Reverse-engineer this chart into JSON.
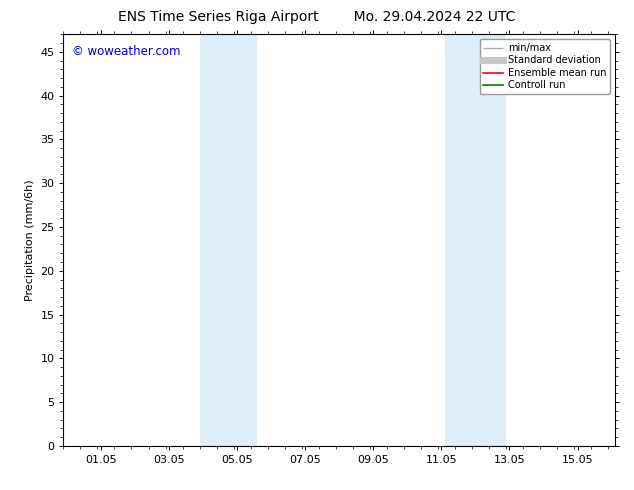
{
  "title_left": "ENS Time Series Riga Airport",
  "title_right": "Mo. 29.04.2024 22 UTC",
  "ylabel": "Precipitation (mm/6h)",
  "xlabel": "",
  "ylim": [
    0,
    47
  ],
  "yticks": [
    0,
    5,
    10,
    15,
    20,
    25,
    30,
    35,
    40,
    45
  ],
  "xtick_labels": [
    "01.05",
    "03.05",
    "05.05",
    "07.05",
    "09.05",
    "11.05",
    "13.05",
    "15.05"
  ],
  "xtick_positions": [
    1.0,
    3.0,
    5.0,
    7.0,
    9.0,
    11.0,
    13.0,
    15.0
  ],
  "xlim": [
    -0.1,
    16.1
  ],
  "shaded_bands": [
    {
      "x_start": 3.9,
      "x_end": 5.6,
      "color": "#ddeef8"
    },
    {
      "x_start": 11.1,
      "x_end": 12.9,
      "color": "#ddeef8"
    }
  ],
  "watermark_text": "© woweather.com",
  "watermark_color": "#0000cc",
  "legend_entries": [
    {
      "label": "min/max",
      "color": "#aaaaaa",
      "linewidth": 1.0
    },
    {
      "label": "Standard deviation",
      "color": "#c8c8c8",
      "linewidth": 5
    },
    {
      "label": "Ensemble mean run",
      "color": "#ff0000",
      "linewidth": 1.2
    },
    {
      "label": "Controll run",
      "color": "#008000",
      "linewidth": 1.2
    }
  ],
  "bg_color": "#ffffff",
  "spine_color": "#000000",
  "title_fontsize": 10,
  "label_fontsize": 8,
  "tick_fontsize": 8,
  "legend_fontsize": 7,
  "watermark_fontsize": 8.5
}
